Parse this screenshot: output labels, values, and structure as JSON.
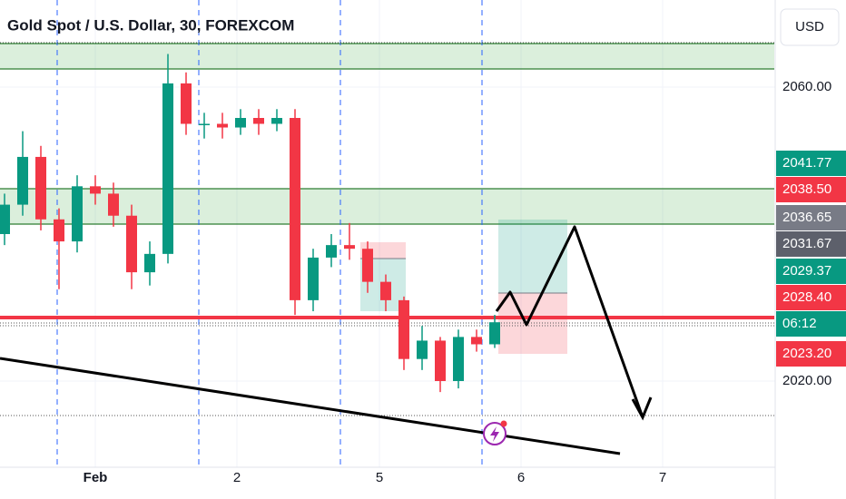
{
  "chart_data": {
    "type": "candlestick",
    "title": "Gold Spot / U.S. Dollar, 30, FOREXCOM",
    "currency": "USD",
    "categories": [
      "Feb",
      "2",
      "5",
      "6",
      "7"
    ],
    "open": [
      2040.0,
      2044.0,
      2050.5,
      2042.0,
      2039.0,
      2046.5,
      2045.5,
      2042.5,
      2034.8,
      2037.3,
      2060.5,
      2055.0,
      2055.0,
      2054.5,
      2055.8,
      2055.0,
      2055.8,
      2031.0,
      2036.8,
      2038.5,
      2038.0,
      2033.5,
      2031.0,
      2023.0,
      2025.5,
      2020.0,
      2026.0,
      2025.0
    ],
    "high": [
      2045.5,
      2054.0,
      2052.0,
      2043.5,
      2048.0,
      2048.0,
      2047.0,
      2044.0,
      2039.0,
      2064.5,
      2062.0,
      2056.5,
      2056.5,
      2057.0,
      2057.0,
      2057.0,
      2057.0,
      2038.0,
      2040.0,
      2041.5,
      2039.0,
      2034.5,
      2031.5,
      2027.5,
      2026.0,
      2027.0,
      2027.0,
      2029.0
    ],
    "low": [
      2038.5,
      2042.5,
      2040.5,
      2032.5,
      2037.5,
      2044.0,
      2041.0,
      2032.5,
      2033.0,
      2036.0,
      2053.5,
      2053.0,
      2053.0,
      2053.5,
      2053.5,
      2054.0,
      2029.0,
      2029.5,
      2035.5,
      2036.5,
      2032.0,
      2029.5,
      2021.5,
      2021.5,
      2018.5,
      2019.0,
      2024.0,
      2024.5
    ],
    "close": [
      2044.0,
      2050.5,
      2042.0,
      2039.0,
      2046.5,
      2045.5,
      2042.5,
      2034.8,
      2037.3,
      2060.5,
      2055.0,
      2055.0,
      2054.5,
      2055.8,
      2055.0,
      2055.8,
      2031.0,
      2036.8,
      2038.5,
      2038.0,
      2033.5,
      2031.0,
      2023.0,
      2025.5,
      2020.0,
      2026.0,
      2025.0,
      2028.0
    ],
    "up_color": "#089981",
    "down_color": "#f23645",
    "ylim": [
      2008.27,
      2071.85
    ],
    "yticks": [
      {
        "value": 2060,
        "label": "2060.00"
      },
      {
        "value": 2020,
        "label": "2020.00"
      }
    ],
    "grid": true,
    "price_labels": [
      {
        "value": 2041.77,
        "color": "#089981"
      },
      {
        "value": 2038.5,
        "label": "2038.50",
        "color": "#f23645"
      },
      {
        "value": 2036.65,
        "color": "#787b86"
      },
      {
        "value": 2031.67,
        "color": "#5d606b"
      },
      {
        "value": 2029.37,
        "color": "#089981"
      },
      {
        "value": 2028.4,
        "label": "2028.40",
        "color": "#f23645"
      },
      {
        "label": "06:12",
        "color": "#089981"
      },
      {
        "value": 2023.2,
        "label": "2023.20",
        "color": "#f23645"
      }
    ]
  }
}
